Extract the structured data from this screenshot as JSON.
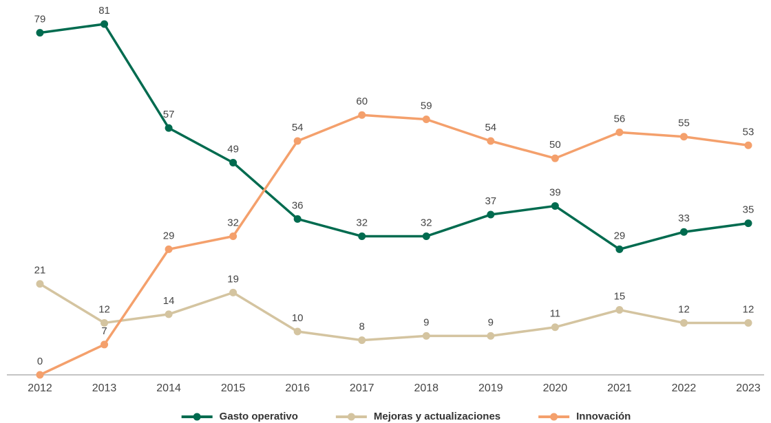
{
  "chart_data": {
    "type": "line",
    "categories": [
      "2012",
      "2013",
      "2014",
      "2015",
      "2016",
      "2017",
      "2018",
      "2019",
      "2020",
      "2021",
      "2022",
      "2023"
    ],
    "series": [
      {
        "name": "Gasto operativo",
        "color": "#006b4f",
        "values": [
          79,
          81,
          57,
          49,
          36,
          32,
          32,
          37,
          39,
          29,
          33,
          35
        ]
      },
      {
        "name": "Mejoras y actualizaciones",
        "color": "#d4c4a0",
        "values": [
          21,
          12,
          14,
          19,
          10,
          8,
          9,
          9,
          11,
          15,
          12,
          12
        ]
      },
      {
        "name": "Innovación",
        "color": "#f4a06c",
        "values": [
          0,
          7,
          29,
          32,
          54,
          60,
          59,
          54,
          50,
          56,
          55,
          53
        ]
      }
    ],
    "ylim": [
      0,
      81
    ],
    "legend": "bottom"
  }
}
